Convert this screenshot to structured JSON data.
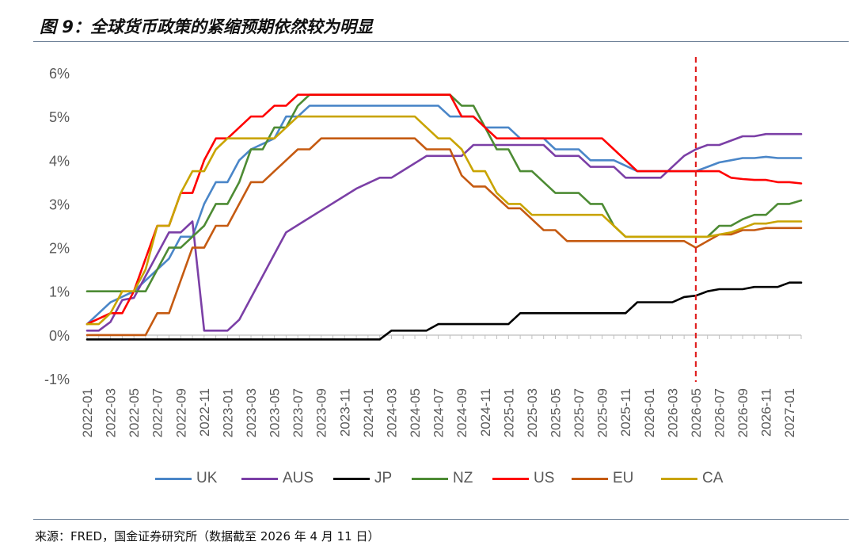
{
  "figure_title": "图 9：全球货币政策的紧缩预期依然较为明显",
  "source": "来源：FRED，国金证券研究所（数据截至 2026 年 4 月 11 日）",
  "chart_data": {
    "type": "line",
    "title": "",
    "xlabel": "",
    "ylabel": "",
    "ylim": [
      -1,
      6
    ],
    "y_ticks": [
      "-1%",
      "0%",
      "1%",
      "2%",
      "3%",
      "4%",
      "5%",
      "6%"
    ],
    "x_tick_labels": [
      "2022-01",
      "2022-03",
      "2022-05",
      "2022-07",
      "2022-09",
      "2022-11",
      "2023-01",
      "2023-03",
      "2023-05",
      "2023-07",
      "2023-09",
      "2023-11",
      "2024-01",
      "2024-03",
      "2024-05",
      "2024-07",
      "2024-09",
      "2024-11",
      "2025-01",
      "2025-03",
      "2025-05",
      "2025-07",
      "2025-09",
      "2025-11",
      "2026-01",
      "2026-03",
      "2026-05",
      "2026-07",
      "2026-09",
      "2026-11",
      "2027-01"
    ],
    "x_start": "2022-01",
    "x_end": "2027-02",
    "marker_line": {
      "x": "2026-05",
      "color": "#e02020",
      "style": "dashed"
    },
    "legend_position": "bottom",
    "gridlines": false,
    "series": [
      {
        "name": "UK",
        "color": "#4a86c8",
        "points": [
          [
            "2022-01",
            0.25
          ],
          [
            "2022-02",
            0.5
          ],
          [
            "2022-03",
            0.75
          ],
          [
            "2022-05",
            1.0
          ],
          [
            "2022-06",
            1.25
          ],
          [
            "2022-08",
            1.75
          ],
          [
            "2022-09",
            2.25
          ],
          [
            "2022-10",
            2.25
          ],
          [
            "2022-11",
            3.0
          ],
          [
            "2022-12",
            3.5
          ],
          [
            "2023-01",
            3.5
          ],
          [
            "2023-02",
            4.0
          ],
          [
            "2023-03",
            4.25
          ],
          [
            "2023-05",
            4.5
          ],
          [
            "2023-06",
            5.0
          ],
          [
            "2023-07",
            5.0
          ],
          [
            "2023-08",
            5.25
          ],
          [
            "2024-07",
            5.25
          ],
          [
            "2024-08",
            5.0
          ],
          [
            "2024-09",
            5.0
          ],
          [
            "2024-10",
            5.0
          ],
          [
            "2024-11",
            4.75
          ],
          [
            "2025-01",
            4.75
          ],
          [
            "2025-02",
            4.5
          ],
          [
            "2025-04",
            4.5
          ],
          [
            "2025-05",
            4.25
          ],
          [
            "2025-07",
            4.25
          ],
          [
            "2025-08",
            4.0
          ],
          [
            "2025-10",
            4.0
          ],
          [
            "2025-12",
            3.75
          ],
          [
            "2026-05",
            3.75
          ],
          [
            "2026-06",
            3.85
          ],
          [
            "2026-07",
            3.95
          ],
          [
            "2026-08",
            4.0
          ],
          [
            "2026-09",
            4.05
          ],
          [
            "2026-10",
            4.05
          ],
          [
            "2026-11",
            4.08
          ],
          [
            "2026-12",
            4.05
          ],
          [
            "2027-02",
            4.05
          ]
        ]
      },
      {
        "name": "AUS",
        "color": "#7b3fa6",
        "points": [
          [
            "2022-01",
            0.1
          ],
          [
            "2022-02",
            0.1
          ],
          [
            "2022-03",
            0.3
          ],
          [
            "2022-04",
            0.8
          ],
          [
            "2022-05",
            0.85
          ],
          [
            "2022-06",
            1.35
          ],
          [
            "2022-07",
            1.85
          ],
          [
            "2022-08",
            2.35
          ],
          [
            "2022-09",
            2.35
          ],
          [
            "2022-10",
            2.6
          ],
          [
            "2022-11",
            0.1
          ],
          [
            "2023-01",
            0.1
          ],
          [
            "2023-02",
            0.35
          ],
          [
            "2023-03",
            0.85
          ],
          [
            "2023-04",
            1.35
          ],
          [
            "2023-05",
            1.85
          ],
          [
            "2023-06",
            2.35
          ],
          [
            "2023-09",
            2.85
          ],
          [
            "2023-12",
            3.35
          ],
          [
            "2024-02",
            3.6
          ],
          [
            "2024-03",
            3.6
          ],
          [
            "2024-06",
            4.1
          ],
          [
            "2024-09",
            4.1
          ],
          [
            "2024-10",
            4.35
          ],
          [
            "2025-04",
            4.35
          ],
          [
            "2025-05",
            4.1
          ],
          [
            "2025-07",
            4.1
          ],
          [
            "2025-08",
            3.85
          ],
          [
            "2025-10",
            3.85
          ],
          [
            "2025-11",
            3.6
          ],
          [
            "2026-02",
            3.6
          ],
          [
            "2026-03",
            3.85
          ],
          [
            "2026-04",
            4.1
          ],
          [
            "2026-05",
            4.25
          ],
          [
            "2026-06",
            4.35
          ],
          [
            "2026-07",
            4.35
          ],
          [
            "2026-08",
            4.45
          ],
          [
            "2026-09",
            4.55
          ],
          [
            "2026-10",
            4.55
          ],
          [
            "2026-11",
            4.6
          ],
          [
            "2027-02",
            4.6
          ]
        ]
      },
      {
        "name": "JP",
        "color": "#000000",
        "points": [
          [
            "2022-01",
            -0.1
          ],
          [
            "2024-02",
            -0.1
          ],
          [
            "2024-03",
            0.1
          ],
          [
            "2024-06",
            0.1
          ],
          [
            "2024-07",
            0.25
          ],
          [
            "2025-01",
            0.25
          ],
          [
            "2025-02",
            0.5
          ],
          [
            "2025-11",
            0.5
          ],
          [
            "2025-12",
            0.75
          ],
          [
            "2026-03",
            0.75
          ],
          [
            "2026-04",
            0.87
          ],
          [
            "2026-05",
            0.9
          ],
          [
            "2026-06",
            1.0
          ],
          [
            "2026-07",
            1.05
          ],
          [
            "2026-09",
            1.05
          ],
          [
            "2026-10",
            1.1
          ],
          [
            "2026-12",
            1.1
          ],
          [
            "2027-01",
            1.2
          ],
          [
            "2027-02",
            1.2
          ]
        ]
      },
      {
        "name": "NZ",
        "color": "#4d8b34",
        "points": [
          [
            "2022-01",
            1.0
          ],
          [
            "2022-06",
            1.0
          ],
          [
            "2022-07",
            1.5
          ],
          [
            "2022-08",
            2.0
          ],
          [
            "2022-09",
            2.0
          ],
          [
            "2022-10",
            2.25
          ],
          [
            "2022-11",
            2.5
          ],
          [
            "2022-12",
            3.0
          ],
          [
            "2023-01",
            3.0
          ],
          [
            "2023-02",
            3.5
          ],
          [
            "2023-03",
            4.25
          ],
          [
            "2023-04",
            4.25
          ],
          [
            "2023-05",
            4.75
          ],
          [
            "2023-06",
            4.75
          ],
          [
            "2023-07",
            5.25
          ],
          [
            "2023-08",
            5.5
          ],
          [
            "2024-08",
            5.5
          ],
          [
            "2024-09",
            5.25
          ],
          [
            "2024-10",
            5.25
          ],
          [
            "2024-11",
            4.75
          ],
          [
            "2024-12",
            4.25
          ],
          [
            "2025-01",
            4.25
          ],
          [
            "2025-02",
            3.75
          ],
          [
            "2025-03",
            3.75
          ],
          [
            "2025-05",
            3.25
          ],
          [
            "2025-07",
            3.25
          ],
          [
            "2025-08",
            3.0
          ],
          [
            "2025-09",
            3.0
          ],
          [
            "2025-10",
            2.5
          ],
          [
            "2025-11",
            2.25
          ],
          [
            "2026-05",
            2.25
          ],
          [
            "2026-06",
            2.25
          ],
          [
            "2026-07",
            2.5
          ],
          [
            "2026-08",
            2.5
          ],
          [
            "2026-09",
            2.65
          ],
          [
            "2026-10",
            2.75
          ],
          [
            "2026-11",
            2.75
          ],
          [
            "2026-12",
            3.0
          ],
          [
            "2027-01",
            3.0
          ],
          [
            "2027-02",
            3.08
          ]
        ]
      },
      {
        "name": "US",
        "color": "#ff0000",
        "points": [
          [
            "2022-01",
            0.25
          ],
          [
            "2022-03",
            0.5
          ],
          [
            "2022-04",
            0.5
          ],
          [
            "2022-05",
            1.0
          ],
          [
            "2022-06",
            1.75
          ],
          [
            "2022-07",
            2.5
          ],
          [
            "2022-08",
            2.5
          ],
          [
            "2022-09",
            3.25
          ],
          [
            "2022-10",
            3.25
          ],
          [
            "2022-11",
            4.0
          ],
          [
            "2022-12",
            4.5
          ],
          [
            "2023-01",
            4.5
          ],
          [
            "2023-02",
            4.75
          ],
          [
            "2023-03",
            5.0
          ],
          [
            "2023-04",
            5.0
          ],
          [
            "2023-05",
            5.25
          ],
          [
            "2023-06",
            5.25
          ],
          [
            "2023-07",
            5.5
          ],
          [
            "2024-08",
            5.5
          ],
          [
            "2024-09",
            5.0
          ],
          [
            "2024-10",
            5.0
          ],
          [
            "2024-11",
            4.75
          ],
          [
            "2024-12",
            4.5
          ],
          [
            "2025-09",
            4.5
          ],
          [
            "2025-10",
            4.25
          ],
          [
            "2025-11",
            4.0
          ],
          [
            "2025-12",
            3.75
          ],
          [
            "2026-06",
            3.75
          ],
          [
            "2026-07",
            3.75
          ],
          [
            "2026-08",
            3.6
          ],
          [
            "2026-09",
            3.57
          ],
          [
            "2026-10",
            3.55
          ],
          [
            "2026-11",
            3.55
          ],
          [
            "2026-12",
            3.5
          ],
          [
            "2027-01",
            3.5
          ],
          [
            "2027-02",
            3.47
          ]
        ]
      },
      {
        "name": "EU",
        "color": "#c55a11",
        "points": [
          [
            "2022-01",
            0.0
          ],
          [
            "2022-06",
            0.0
          ],
          [
            "2022-07",
            0.5
          ],
          [
            "2022-08",
            0.5
          ],
          [
            "2022-09",
            1.25
          ],
          [
            "2022-10",
            2.0
          ],
          [
            "2022-11",
            2.0
          ],
          [
            "2022-12",
            2.5
          ],
          [
            "2023-01",
            2.5
          ],
          [
            "2023-02",
            3.0
          ],
          [
            "2023-03",
            3.5
          ],
          [
            "2023-04",
            3.5
          ],
          [
            "2023-05",
            3.75
          ],
          [
            "2023-06",
            4.0
          ],
          [
            "2023-07",
            4.25
          ],
          [
            "2023-08",
            4.25
          ],
          [
            "2023-09",
            4.5
          ],
          [
            "2024-05",
            4.5
          ],
          [
            "2024-06",
            4.25
          ],
          [
            "2024-08",
            4.25
          ],
          [
            "2024-09",
            3.65
          ],
          [
            "2024-10",
            3.4
          ],
          [
            "2024-11",
            3.4
          ],
          [
            "2024-12",
            3.15
          ],
          [
            "2025-01",
            2.9
          ],
          [
            "2025-02",
            2.9
          ],
          [
            "2025-03",
            2.65
          ],
          [
            "2025-04",
            2.4
          ],
          [
            "2025-05",
            2.4
          ],
          [
            "2025-06",
            2.15
          ],
          [
            "2026-04",
            2.15
          ],
          [
            "2026-05",
            2.0
          ],
          [
            "2026-06",
            2.15
          ],
          [
            "2026-07",
            2.3
          ],
          [
            "2026-08",
            2.3
          ],
          [
            "2026-09",
            2.4
          ],
          [
            "2026-10",
            2.4
          ],
          [
            "2026-11",
            2.45
          ],
          [
            "2027-02",
            2.45
          ]
        ]
      },
      {
        "name": "CA",
        "color": "#c9a400",
        "points": [
          [
            "2022-01",
            0.25
          ],
          [
            "2022-02",
            0.25
          ],
          [
            "2022-03",
            0.5
          ],
          [
            "2022-04",
            1.0
          ],
          [
            "2022-05",
            1.0
          ],
          [
            "2022-06",
            1.5
          ],
          [
            "2022-07",
            2.5
          ],
          [
            "2022-08",
            2.5
          ],
          [
            "2022-09",
            3.25
          ],
          [
            "2022-10",
            3.75
          ],
          [
            "2022-11",
            3.75
          ],
          [
            "2022-12",
            4.25
          ],
          [
            "2023-01",
            4.5
          ],
          [
            "2023-05",
            4.5
          ],
          [
            "2023-06",
            4.75
          ],
          [
            "2023-07",
            5.0
          ],
          [
            "2024-05",
            5.0
          ],
          [
            "2024-06",
            4.75
          ],
          [
            "2024-07",
            4.5
          ],
          [
            "2024-08",
            4.5
          ],
          [
            "2024-09",
            4.25
          ],
          [
            "2024-10",
            3.75
          ],
          [
            "2024-11",
            3.75
          ],
          [
            "2024-12",
            3.25
          ],
          [
            "2025-01",
            3.0
          ],
          [
            "2025-02",
            3.0
          ],
          [
            "2025-03",
            2.75
          ],
          [
            "2025-09",
            2.75
          ],
          [
            "2025-10",
            2.5
          ],
          [
            "2025-11",
            2.25
          ],
          [
            "2026-06",
            2.25
          ],
          [
            "2026-07",
            2.3
          ],
          [
            "2026-08",
            2.35
          ],
          [
            "2026-09",
            2.45
          ],
          [
            "2026-10",
            2.55
          ],
          [
            "2026-11",
            2.55
          ],
          [
            "2026-12",
            2.6
          ],
          [
            "2027-02",
            2.6
          ]
        ]
      }
    ]
  }
}
